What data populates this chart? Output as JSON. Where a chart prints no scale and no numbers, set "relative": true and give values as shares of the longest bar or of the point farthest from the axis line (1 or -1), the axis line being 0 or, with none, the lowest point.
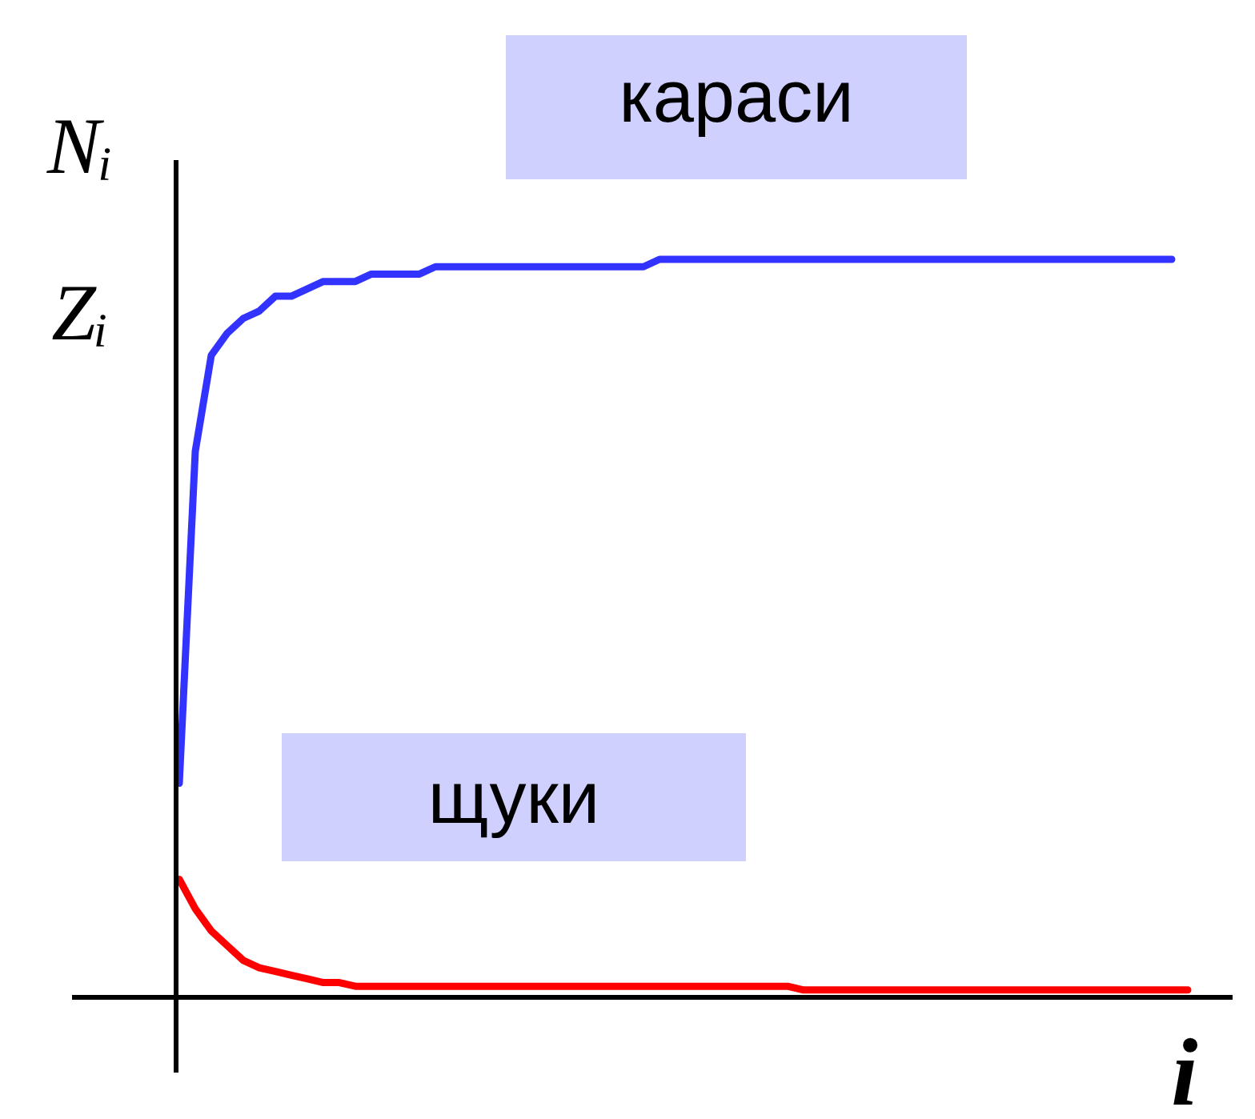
{
  "chart_data": {
    "type": "line",
    "relative": true,
    "xlabel": "i",
    "ylabel": "Nᵢ\nZᵢ",
    "categories": [
      null,
      null,
      null,
      null,
      null,
      null,
      null,
      null,
      null,
      null,
      null,
      null,
      null,
      null,
      null,
      null,
      null,
      null,
      null,
      null,
      null,
      null,
      null,
      null,
      null,
      null,
      null,
      null,
      null,
      null,
      null,
      null,
      null,
      null,
      null,
      null,
      null,
      null,
      null,
      null,
      null,
      null,
      null,
      null,
      null,
      null,
      null,
      null,
      null,
      null,
      null,
      null,
      null,
      null,
      null,
      null,
      null,
      null,
      null,
      null,
      null,
      null,
      null,
      null
    ],
    "series": [
      {
        "name": "караси",
        "color": "#3333ff",
        "values": [
          0.29,
          0.74,
          0.87,
          0.9,
          0.92,
          0.93,
          0.95,
          0.95,
          0.96,
          0.97,
          0.97,
          0.97,
          0.98,
          0.98,
          0.98,
          0.98,
          0.99,
          0.99,
          0.99,
          0.99,
          0.99,
          0.99,
          0.99,
          0.99,
          0.99,
          0.99,
          0.99,
          0.99,
          0.99,
          0.99,
          1.0,
          1.0,
          1.0,
          1.0,
          1.0,
          1.0,
          1.0,
          1.0,
          1.0,
          1.0,
          1.0,
          1.0,
          1.0,
          1.0,
          1.0,
          1.0,
          1.0,
          1.0,
          1.0,
          1.0,
          1.0,
          1.0,
          1.0,
          1.0,
          1.0,
          1.0,
          1.0,
          1.0,
          1.0,
          1.0,
          1.0,
          1.0,
          1.0,
          null
        ]
      },
      {
        "name": "щуки",
        "color": "#ff0000",
        "values": [
          0.16,
          0.12,
          0.09,
          0.07,
          0.05,
          0.04,
          0.035,
          0.03,
          0.025,
          0.02,
          0.02,
          0.015,
          0.015,
          0.015,
          0.015,
          0.015,
          0.015,
          0.015,
          0.015,
          0.015,
          0.015,
          0.015,
          0.015,
          0.015,
          0.015,
          0.015,
          0.015,
          0.015,
          0.015,
          0.015,
          0.015,
          0.015,
          0.015,
          0.015,
          0.015,
          0.015,
          0.015,
          0.015,
          0.015,
          0.01,
          0.01,
          0.01,
          0.01,
          0.01,
          0.01,
          0.01,
          0.01,
          0.01,
          0.01,
          0.01,
          0.01,
          0.01,
          0.01,
          0.01,
          0.01,
          0.01,
          0.01,
          0.01,
          0.01,
          0.01,
          0.01,
          0.01,
          0.01,
          0.01
        ]
      }
    ]
  }
}
